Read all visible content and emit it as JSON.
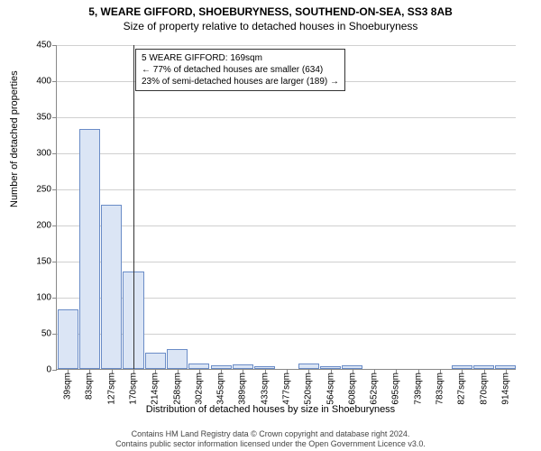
{
  "title_main": "5, WEARE GIFFORD, SHOEBURYNESS, SOUTHEND-ON-SEA, SS3 8AB",
  "title_sub": "Size of property relative to detached houses in Shoeburyness",
  "y_axis_title": "Number of detached properties",
  "x_axis_title": "Distribution of detached houses by size in Shoeburyness",
  "chart": {
    "type": "histogram",
    "y_min": 0,
    "y_max": 450,
    "y_tick_step": 50,
    "y_ticks": [
      0,
      50,
      100,
      150,
      200,
      250,
      300,
      350,
      400,
      450
    ],
    "x_tick_labels": [
      "39sqm",
      "83sqm",
      "127sqm",
      "170sqm",
      "214sqm",
      "258sqm",
      "302sqm",
      "345sqm",
      "389sqm",
      "433sqm",
      "477sqm",
      "520sqm",
      "564sqm",
      "608sqm",
      "652sqm",
      "695sqm",
      "739sqm",
      "783sqm",
      "827sqm",
      "870sqm",
      "914sqm"
    ],
    "bar_values": [
      83,
      333,
      228,
      135,
      22,
      28,
      8,
      5,
      6,
      4,
      0,
      8,
      4,
      5,
      0,
      0,
      0,
      0,
      5,
      5,
      5
    ],
    "bar_color": "#dbe5f5",
    "bar_border_color": "#6a8cc7",
    "grid_color": "#d0d0d0",
    "axis_color": "#888888",
    "background_color": "#ffffff",
    "bar_width_rel": 0.95,
    "marker_bin_index": 3,
    "marker_color": "#333333"
  },
  "info_box": {
    "line1": "5 WEARE GIFFORD: 169sqm",
    "line2": "← 77% of detached houses are smaller (634)",
    "line3": "23% of semi-detached houses are larger (189) →"
  },
  "footer_line1": "Contains HM Land Registry data © Crown copyright and database right 2024.",
  "footer_line2": "Contains public sector information licensed under the Open Government Licence v3.0."
}
